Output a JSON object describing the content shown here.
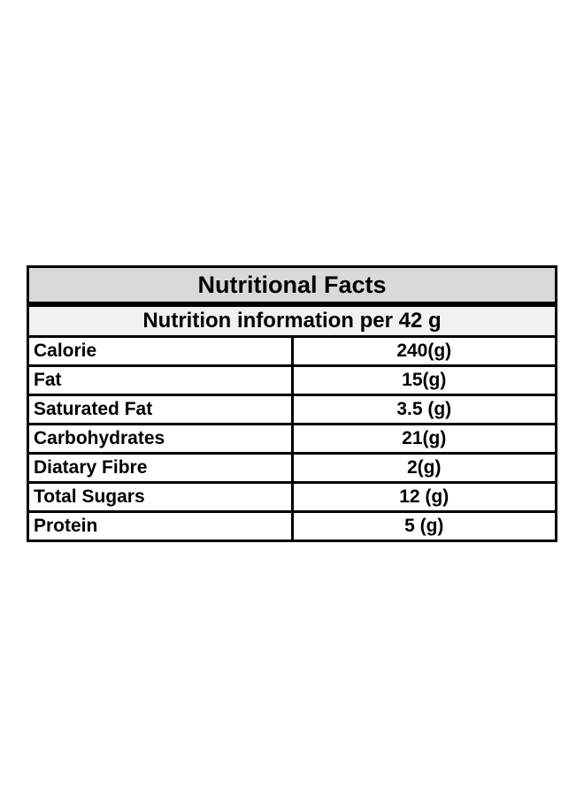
{
  "table": {
    "title": "Nutritional Facts",
    "subtitle": "Nutrition information per 42 g",
    "colors": {
      "title_background": "#d9d9d9",
      "subtitle_background": "#f1f1f1",
      "row_background": "#ffffff",
      "border": "#000000",
      "text": "#000000",
      "page_background": "#ffffff"
    },
    "rows": [
      {
        "label": "Calorie",
        "value": "240(g)"
      },
      {
        "label": "Fat",
        "value": "15(g)"
      },
      {
        "label": "Saturated Fat",
        "value": "3.5 (g)"
      },
      {
        "label": "Carbohydrates",
        "value": "21(g)"
      },
      {
        "label": "Diatary Fibre",
        "value": "2(g)"
      },
      {
        "label": "Total Sugars",
        "value": "12 (g)"
      },
      {
        "label": "Protein",
        "value": "5 (g)"
      }
    ]
  }
}
